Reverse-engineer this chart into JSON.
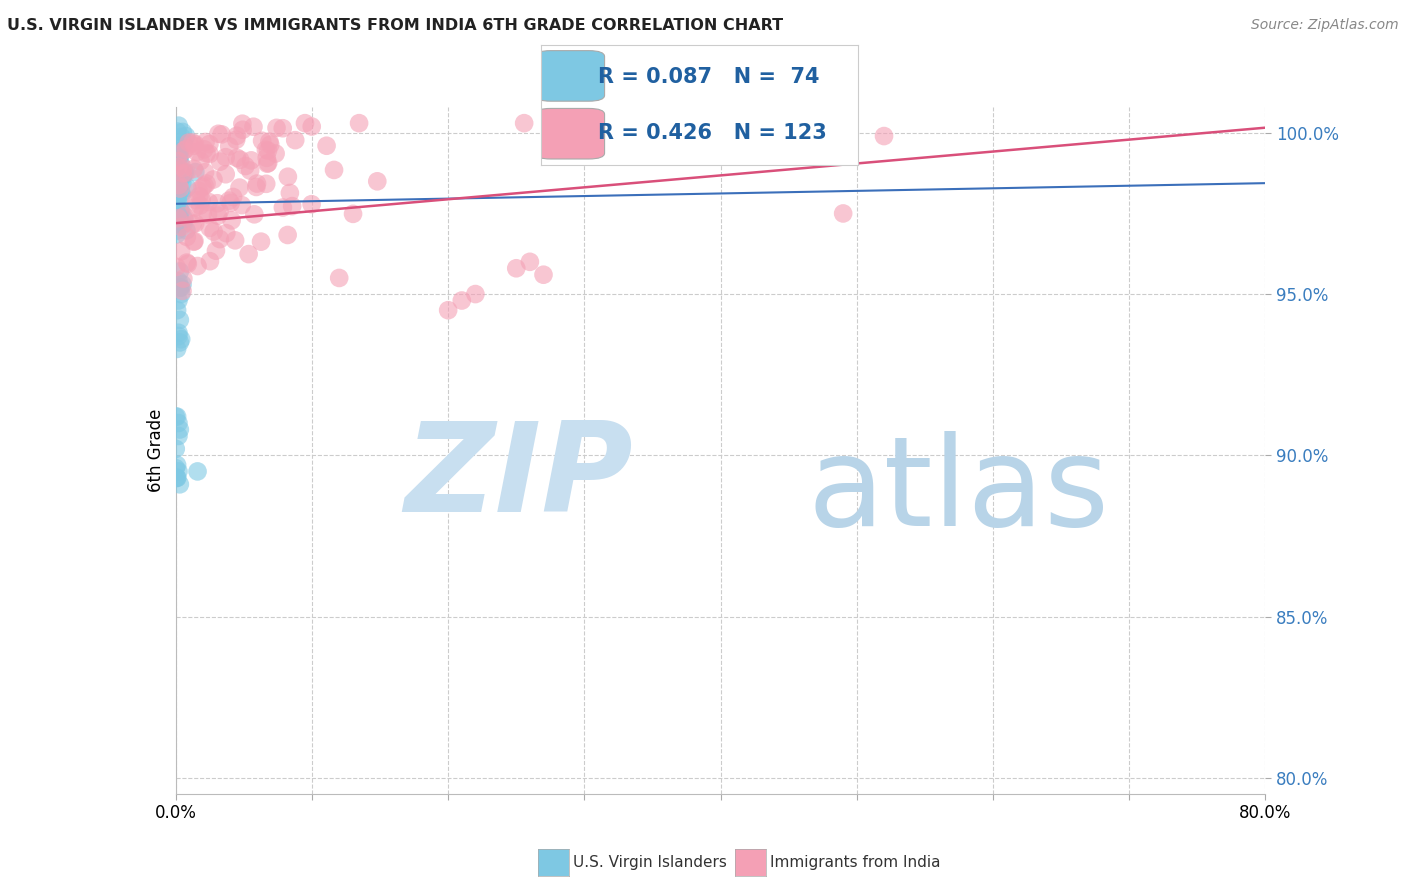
{
  "title": "U.S. VIRGIN ISLANDER VS IMMIGRANTS FROM INDIA 6TH GRADE CORRELATION CHART",
  "source": "Source: ZipAtlas.com",
  "ylabel": "6th Grade",
  "xlim": [
    0.0,
    0.8
  ],
  "ylim": [
    0.795,
    1.008
  ],
  "xticks": [
    0.0,
    0.1,
    0.2,
    0.3,
    0.4,
    0.5,
    0.6,
    0.7,
    0.8
  ],
  "yticks": [
    0.8,
    0.85,
    0.9,
    0.95,
    1.0
  ],
  "yticklabels": [
    "80.0%",
    "85.0%",
    "90.0%",
    "95.0%",
    "100.0%"
  ],
  "legend_R_blue": "0.087",
  "legend_N_blue": "74",
  "legend_R_pink": "0.426",
  "legend_N_pink": "123",
  "blue_color": "#7ec8e3",
  "pink_color": "#f4a0b5",
  "blue_line_color": "#3b6fba",
  "pink_line_color": "#d94f7a",
  "watermark_zip": "ZIP",
  "watermark_atlas": "atlas",
  "watermark_color": "#c8dff0",
  "grid_color": "#cccccc",
  "blue_n": 74,
  "pink_n": 123
}
